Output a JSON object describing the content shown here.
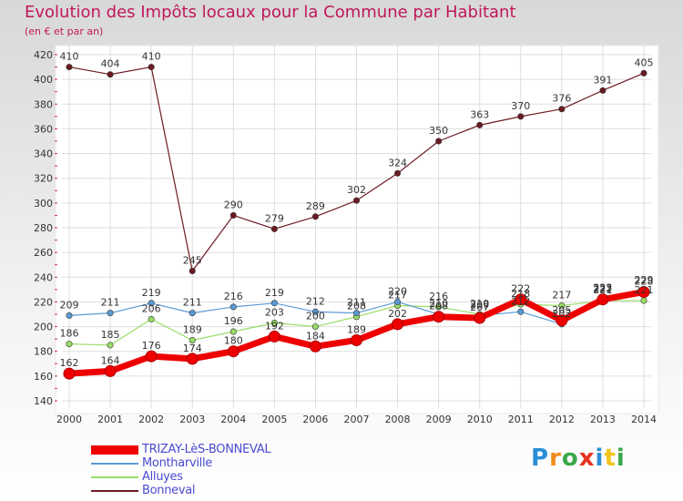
{
  "title": "Evolution des Impôts locaux pour la Commune par Habitant",
  "subtitle": "(en € et par an)",
  "logo": {
    "text": "Proxiti",
    "colors": [
      "#2a8fd6",
      "#f08a1c",
      "#3aa84a",
      "#e8321e",
      "#2a8fd6",
      "#f0c419",
      "#3aa84a"
    ]
  },
  "chart_data": {
    "type": "line",
    "title": "Evolution des Impôts locaux pour la Commune par Habitant",
    "ylabel": "(en € et par an)",
    "xlabel": "",
    "ylim": [
      140,
      420
    ],
    "yticks": [
      140,
      160,
      180,
      200,
      220,
      240,
      260,
      280,
      300,
      320,
      340,
      360,
      380,
      400,
      420
    ],
    "grid": true,
    "categories": [
      "2000",
      "2001",
      "2002",
      "2003",
      "2004",
      "2005",
      "2006",
      "2007",
      "2008",
      "2009",
      "2010",
      "2011",
      "2012",
      "2013",
      "2014"
    ],
    "series": [
      {
        "name": "TRIZAY-LèS-BONNEVAL",
        "color": "#ee0000",
        "values": [
          162,
          164,
          176,
          174,
          180,
          192,
          184,
          189,
          202,
          208,
          207,
          222,
          205,
          222,
          228
        ]
      },
      {
        "name": "Montharville",
        "color": "#5b9bd5",
        "values": [
          209,
          211,
          219,
          211,
          216,
          219,
          212,
          211,
          220,
          210,
          209,
          212,
          202,
          223,
          229
        ]
      },
      {
        "name": "Alluyes",
        "color": "#99dd66",
        "values": [
          186,
          185,
          206,
          189,
          196,
          203,
          200,
          208,
          217,
          216,
          210,
          218,
          217,
          221,
          221
        ]
      },
      {
        "name": "Bonneval",
        "color": "#6b1a22",
        "values": [
          410,
          404,
          410,
          245,
          290,
          279,
          289,
          302,
          324,
          350,
          363,
          370,
          376,
          391,
          405
        ]
      }
    ],
    "data_labels": [
      {
        "series": 0,
        "values": [
          "162",
          "164",
          "176",
          "174",
          "180",
          "192",
          "184",
          "189",
          "202",
          "208",
          "207",
          "222",
          "205",
          "222",
          "228"
        ]
      },
      {
        "series": 1,
        "values": [
          "209",
          "211",
          "219",
          "211",
          "216",
          "219",
          "212",
          "211",
          "220",
          "210",
          "209",
          "212",
          "202",
          "223",
          "229"
        ]
      },
      {
        "series": 2,
        "values": [
          "186",
          "185",
          "206",
          "189",
          "196",
          "203",
          "200",
          "208",
          "217",
          "216",
          "210",
          "218",
          "217",
          "221",
          "221"
        ]
      },
      {
        "series": 3,
        "values": [
          "410",
          "404",
          "410",
          "245",
          "290",
          "279",
          "289",
          "302",
          "324",
          "350",
          "363",
          "370",
          "376",
          "391",
          "405"
        ]
      }
    ],
    "legend": {
      "position": "bottom-left"
    }
  }
}
